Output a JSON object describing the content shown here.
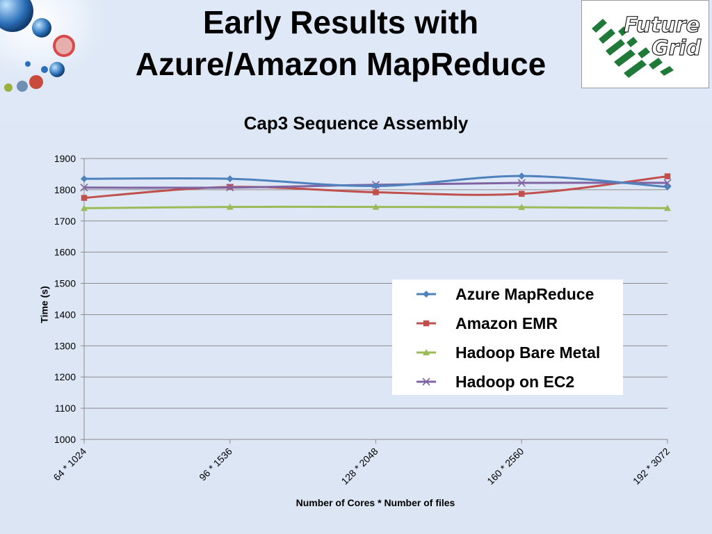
{
  "slide": {
    "title_line1": "Early Results with",
    "title_line2": "Azure/Amazon MapReduce"
  },
  "logo": {
    "line1": "Future",
    "line2": "Grid"
  },
  "chart_data": {
    "type": "line",
    "title": "Cap3 Sequence Assembly",
    "xlabel": "Number of Cores * Number of files",
    "ylabel": "Time (s)",
    "categories": [
      "64 * 1024",
      "96 * 1536",
      "128 * 2048",
      "160 * 2560",
      "192 * 3072"
    ],
    "ylim": [
      1000,
      1900
    ],
    "yticks": [
      1000,
      1100,
      1200,
      1300,
      1400,
      1500,
      1600,
      1700,
      1800,
      1900
    ],
    "grid": true,
    "legend_position": "right-center",
    "series": [
      {
        "name": "Azure MapReduce",
        "color": "#4f81bd",
        "marker": "diamond",
        "values": [
          1835,
          1835,
          1812,
          1844,
          1809
        ]
      },
      {
        "name": "Amazon EMR",
        "color": "#c0504d",
        "marker": "square",
        "values": [
          1774,
          1809,
          1792,
          1787,
          1843
        ]
      },
      {
        "name": "Hadoop Bare Metal",
        "color": "#9bbb59",
        "marker": "triangle",
        "values": [
          1741,
          1745,
          1745,
          1744,
          1741
        ]
      },
      {
        "name": "Hadoop on EC2",
        "color": "#8064a2",
        "marker": "x",
        "values": [
          1807,
          1807,
          1816,
          1822,
          1822
        ]
      }
    ]
  }
}
